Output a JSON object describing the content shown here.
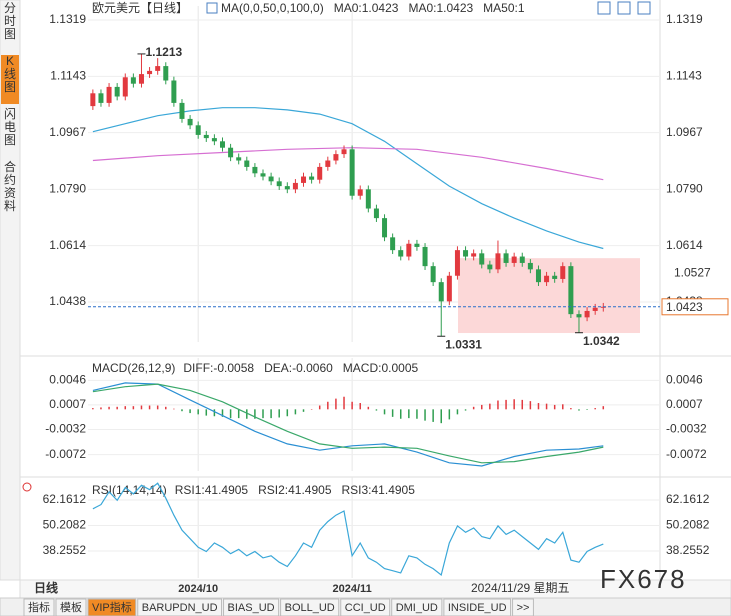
{
  "chart_data": [
    {
      "type": "candlestick",
      "title": "欧元美元",
      "subtitle": "【日线】",
      "open": [
        1.105,
        1.109,
        1.106,
        1.111,
        1.108,
        1.114,
        1.112,
        1.115,
        1.116,
        1.1175,
        1.113,
        1.106,
        1.101,
        1.099,
        1.096,
        1.095,
        1.094,
        1.092,
        1.089,
        1.088,
        1.086,
        1.084,
        1.083,
        1.0815,
        1.08,
        1.079,
        1.081,
        1.083,
        1.082,
        1.086,
        1.088,
        1.09,
        1.0915,
        1.077,
        1.079,
        1.073,
        1.07,
        1.064,
        1.06,
        1.058,
        1.062,
        1.061,
        1.055,
        1.05,
        1.044,
        1.052,
        1.06,
        1.058,
        1.059,
        1.0555,
        1.054,
        1.059,
        1.056,
        1.058,
        1.056,
        1.054,
        1.05,
        1.052,
        1.051,
        1.055,
        1.04,
        1.039,
        1.041,
        1.042
      ],
      "high": [
        1.1102,
        1.1102,
        1.1122,
        1.1122,
        1.1152,
        1.1152,
        1.1213,
        1.1172,
        1.12,
        1.1187,
        1.1142,
        1.1072,
        1.1022,
        1.1002,
        1.0972,
        1.0962,
        1.0952,
        1.0932,
        1.0902,
        1.0892,
        1.0872,
        1.0852,
        1.0842,
        1.0827,
        1.0812,
        1.0822,
        1.0842,
        1.0842,
        1.0872,
        1.0892,
        1.0912,
        1.0927,
        1.0927,
        1.0802,
        1.0802,
        1.0742,
        1.0712,
        1.0652,
        1.0612,
        1.0632,
        1.0632,
        1.0622,
        1.0562,
        1.0512,
        1.0532,
        1.0612,
        1.0612,
        1.0602,
        1.0602,
        1.0567,
        1.063,
        1.0602,
        1.0592,
        1.0592,
        1.0572,
        1.0552,
        1.0532,
        1.0532,
        1.0562,
        1.0562,
        1.0412,
        1.0422,
        1.0432,
        1.0435
      ],
      "low": [
        1.1038,
        1.1048,
        1.1048,
        1.1068,
        1.1068,
        1.1108,
        1.1108,
        1.1138,
        1.1148,
        1.1118,
        1.1048,
        1.0998,
        1.0978,
        1.0948,
        1.0938,
        1.0928,
        1.0908,
        1.0878,
        1.0868,
        1.0848,
        1.0828,
        1.0818,
        1.0803,
        1.0788,
        1.0778,
        1.0778,
        1.0798,
        1.0808,
        1.0808,
        1.0848,
        1.0868,
        1.0888,
        1.0758,
        1.0758,
        1.0718,
        1.0688,
        1.0628,
        1.0588,
        1.0568,
        1.0568,
        1.0598,
        1.0538,
        1.0488,
        1.0331,
        1.0428,
        1.0508,
        1.0568,
        1.0568,
        1.0543,
        1.0528,
        1.0528,
        1.0548,
        1.0548,
        1.0548,
        1.0528,
        1.0488,
        1.0488,
        1.0498,
        1.0498,
        1.0388,
        1.0342,
        1.0378,
        1.0398,
        1.0408
      ],
      "close": [
        1.109,
        1.106,
        1.111,
        1.108,
        1.114,
        1.112,
        1.115,
        1.116,
        1.1175,
        1.113,
        1.106,
        1.101,
        1.099,
        1.096,
        1.095,
        1.094,
        1.092,
        1.089,
        1.088,
        1.086,
        1.084,
        1.083,
        1.0815,
        1.08,
        1.079,
        1.081,
        1.083,
        1.082,
        1.086,
        1.088,
        1.09,
        1.0915,
        1.077,
        1.079,
        1.073,
        1.07,
        1.064,
        1.06,
        1.058,
        1.062,
        1.061,
        1.055,
        1.05,
        1.044,
        1.052,
        1.06,
        1.058,
        1.059,
        1.0555,
        1.054,
        1.059,
        1.056,
        1.058,
        1.056,
        1.054,
        1.05,
        1.052,
        1.051,
        1.055,
        1.04,
        1.039,
        1.041,
        1.042,
        1.0423
      ],
      "up_color": "#e2393f",
      "down_color": "#2f9e50",
      "xlim": [
        -0.6,
        70
      ],
      "xticks": [
        {
          "value": 13,
          "label": "2024/10"
        },
        {
          "value": 32,
          "label": "2024/11"
        }
      ],
      "ylim": [
        1.0313,
        1.1344
      ],
      "yticks": [
        1.1319,
        1.1143,
        1.0967,
        {
          "value": 1.079,
          "label": "1.0790"
        },
        1.0614,
        1.0438
      ],
      "legend": [
        "MA(0,0,50,0,100,0)",
        "MA0:1.0423",
        "MA0:1.0423",
        "MA50:1"
      ],
      "legend_colors": [
        "#333333",
        "#2bb3c0",
        "#2bb3c0",
        "#7fd1d8"
      ],
      "lines": [
        {
          "color": "#3aa7d8",
          "x": [
            0,
            4,
            8,
            12,
            16,
            20,
            24,
            28,
            32,
            36,
            40,
            44,
            48,
            52,
            56,
            60,
            63
          ],
          "values": [
            1.097,
            1.0995,
            1.102,
            1.1035,
            1.1045,
            1.1045,
            1.1038,
            1.1025,
            1.0995,
            1.094,
            1.087,
            1.08,
            1.0745,
            1.07,
            1.066,
            1.0625,
            1.0605
          ]
        },
        {
          "color": "#d66fd2",
          "x": [
            0,
            8,
            16,
            24,
            32,
            40,
            48,
            56,
            63
          ],
          "values": [
            1.088,
            1.0895,
            1.0905,
            1.0915,
            1.092,
            1.0915,
            1.089,
            1.0855,
            1.082
          ]
        }
      ],
      "zone": [
        1.0341,
        1.0575
      ],
      "zone_color": "#fcd4d4",
      "last_price": 1.0423,
      "ref_price": 1.0527,
      "extremes": [
        1.1213,
        1.0331,
        1.0342
      ]
    },
    {
      "type": "macd",
      "title": "MACD(26,12,9)",
      "legend": [
        "DIFF:-0.0058",
        "DEA:-0.0060",
        "MACD:0.0005"
      ],
      "legend_colors": [
        "#2a8fd3",
        "#2bb3a0",
        "#2a8fd3"
      ],
      "ylim": [
        -0.0098,
        0.0072
      ],
      "yticks": [
        0.0046,
        0.0007,
        -0.0032,
        -0.0072
      ],
      "up_color": "#e2393f",
      "down_color": "#2f9e50",
      "histogram": [
        0.0002,
        0.0003,
        0.0004,
        0.0004,
        0.0005,
        0.0005,
        0.0006,
        0.0006,
        0.0006,
        0.0004,
        0.0001,
        -0.0003,
        -0.0006,
        -0.0008,
        -0.001,
        -0.0011,
        -0.0012,
        -0.0014,
        -0.0014,
        -0.0015,
        -0.0015,
        -0.0014,
        -0.0014,
        -0.0013,
        -0.0011,
        -0.0008,
        -0.0004,
        0,
        0.0006,
        0.0012,
        0.0017,
        0.002,
        0.0012,
        0.001,
        0.0004,
        -0.0002,
        -0.0008,
        -0.0012,
        -0.0015,
        -0.0014,
        -0.0015,
        -0.0018,
        -0.002,
        -0.0022,
        -0.0016,
        -0.0008,
        -0.0002,
        0.0004,
        0.0007,
        0.0009,
        0.0014,
        0.0015,
        0.0016,
        0.0015,
        0.0013,
        0.001,
        0.0009,
        0.0007,
        0.0008,
        0.0002,
        -0.0002,
        -0.0001,
        0.0002,
        0.0005
      ],
      "lines": [
        {
          "color": "#2a8fd3",
          "x": [
            0,
            4,
            8,
            12,
            16,
            20,
            24,
            28,
            32,
            36,
            40,
            44,
            48,
            52,
            56,
            60,
            63
          ],
          "values": [
            0.003,
            0.0042,
            0.004,
            0.0015,
            -0.001,
            -0.0035,
            -0.0055,
            -0.0065,
            -0.0058,
            -0.0055,
            -0.0068,
            -0.0085,
            -0.009,
            -0.0075,
            -0.0065,
            -0.0063,
            -0.0058
          ]
        },
        {
          "color": "#3aa86a",
          "x": [
            0,
            4,
            8,
            12,
            16,
            20,
            24,
            28,
            32,
            36,
            40,
            44,
            48,
            52,
            56,
            60,
            63
          ],
          "values": [
            0.0028,
            0.0036,
            0.004,
            0.003,
            0.0012,
            -0.0012,
            -0.0035,
            -0.0055,
            -0.0062,
            -0.006,
            -0.0062,
            -0.0074,
            -0.0085,
            -0.0083,
            -0.0075,
            -0.0068,
            -0.006
          ]
        }
      ]
    },
    {
      "type": "line",
      "title": "RSI(14,14,14)",
      "legend": [
        "RSI1:41.4905",
        "RSI2:41.4905",
        "RSI3:41.4905"
      ],
      "legend_colors": [
        "#2a8fd3",
        "#2bb3a0",
        "#2a8fd3"
      ],
      "ylim": [
        25.6,
        70.1
      ],
      "yticks": [
        62.1612,
        50.2082,
        38.2552
      ],
      "lines": [
        {
          "color": "#3aa7d8",
          "values": [
            58,
            60,
            66,
            62,
            68,
            65,
            69,
            67,
            70,
            63,
            55,
            48,
            44,
            40,
            38,
            42,
            40,
            37,
            39,
            36,
            38,
            35,
            36,
            33,
            31,
            36,
            42,
            40,
            48,
            52,
            55,
            57,
            36,
            42,
            35,
            33,
            30,
            29,
            28,
            36,
            35,
            32,
            30,
            27,
            42,
            50,
            47,
            49,
            45,
            44,
            50,
            46,
            48,
            45,
            42,
            39,
            44,
            42,
            47,
            34,
            33,
            38,
            40,
            41.4905
          ]
        }
      ]
    }
  ],
  "ui": {
    "side_tabs": [
      "分时图",
      "K线图",
      "闪电图",
      "合约资料"
    ],
    "active_tab": "K线图",
    "period": "日线",
    "date": "2024/11/29 星期五",
    "tabs": [
      "指标",
      "模板",
      "VIP指标",
      "BARUPDN_UD",
      "BIAS_UD",
      "BOLL_UD",
      "CCI_UD",
      "DMI_UD",
      "INSIDE_UD",
      ">>"
    ],
    "active_bottom": "VIP指标",
    "watermark": "FX678"
  }
}
